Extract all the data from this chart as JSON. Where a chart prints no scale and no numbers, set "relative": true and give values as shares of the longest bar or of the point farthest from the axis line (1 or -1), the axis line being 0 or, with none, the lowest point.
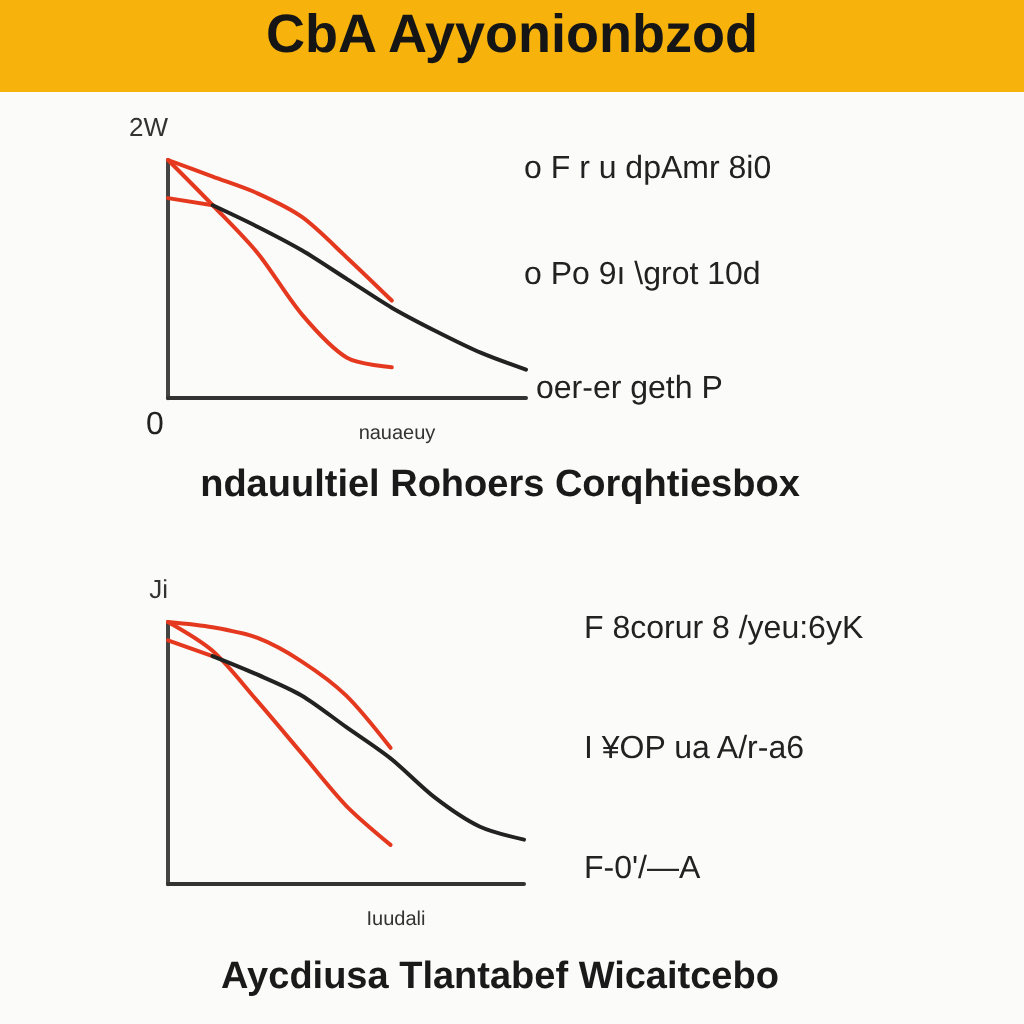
{
  "chart_data": [
    {
      "type": "line",
      "title": "CbA Ayyonionbzod",
      "xlabel": "nauaeuy",
      "ylabel": "2W",
      "relative": true,
      "categories": [
        null,
        null,
        null,
        null,
        null,
        null,
        null,
        null,
        null
      ],
      "marker": "none",
      "line_style": "solid",
      "series": [
        {
          "color": "#e5391f",
          "values": [
            1.0,
            0.93,
            0.86,
            0.76,
            0.59,
            0.41,
            null,
            null,
            null
          ]
        },
        {
          "color": "#e5391f",
          "values": [
            1.0,
            0.81,
            0.61,
            0.35,
            0.17,
            0.13,
            null,
            null,
            null
          ]
        },
        {
          "color": "#e5391f",
          "values": [
            0.84,
            0.81,
            null,
            null,
            null,
            null,
            null,
            null,
            null
          ]
        },
        {
          "color": "#222222",
          "values": [
            null,
            0.81,
            0.72,
            0.62,
            0.5,
            0.38,
            0.28,
            0.19,
            0.12
          ]
        }
      ],
      "annotations": [
        "0",
        "o  F r u dpAmr 8i0",
        "o  Po 9ı \\grot 10d",
        "oer-er geth P",
        "ndauultiel Rohoers Corqhtiesbox"
      ]
    },
    {
      "type": "line",
      "xlabel": "Iuudali",
      "ylabel": "Ji",
      "relative": true,
      "categories": [
        null,
        null,
        null,
        null,
        null,
        null,
        null,
        null,
        null
      ],
      "marker": "none",
      "line_style": "solid",
      "series": [
        {
          "color": "#e5391f",
          "values": [
            1.0,
            0.98,
            0.94,
            0.85,
            0.72,
            0.52,
            null,
            null,
            null
          ]
        },
        {
          "color": "#e5391f",
          "values": [
            1.0,
            0.89,
            0.7,
            0.5,
            0.3,
            0.15,
            null,
            null,
            null
          ]
        },
        {
          "color": "#e5391f",
          "values": [
            0.93,
            0.87,
            null,
            null,
            null,
            null,
            null,
            null,
            null
          ]
        },
        {
          "color": "#222222",
          "values": [
            null,
            0.87,
            0.8,
            0.72,
            0.6,
            0.48,
            0.33,
            0.22,
            0.17
          ]
        }
      ],
      "annotations": [
        "F 8corur 8 /yeu:6yK",
        "I ¥OP ua A/r-a6",
        "F-0'/—A",
        "Aycdiusa Tlantabef Wicaitcebo"
      ]
    }
  ]
}
